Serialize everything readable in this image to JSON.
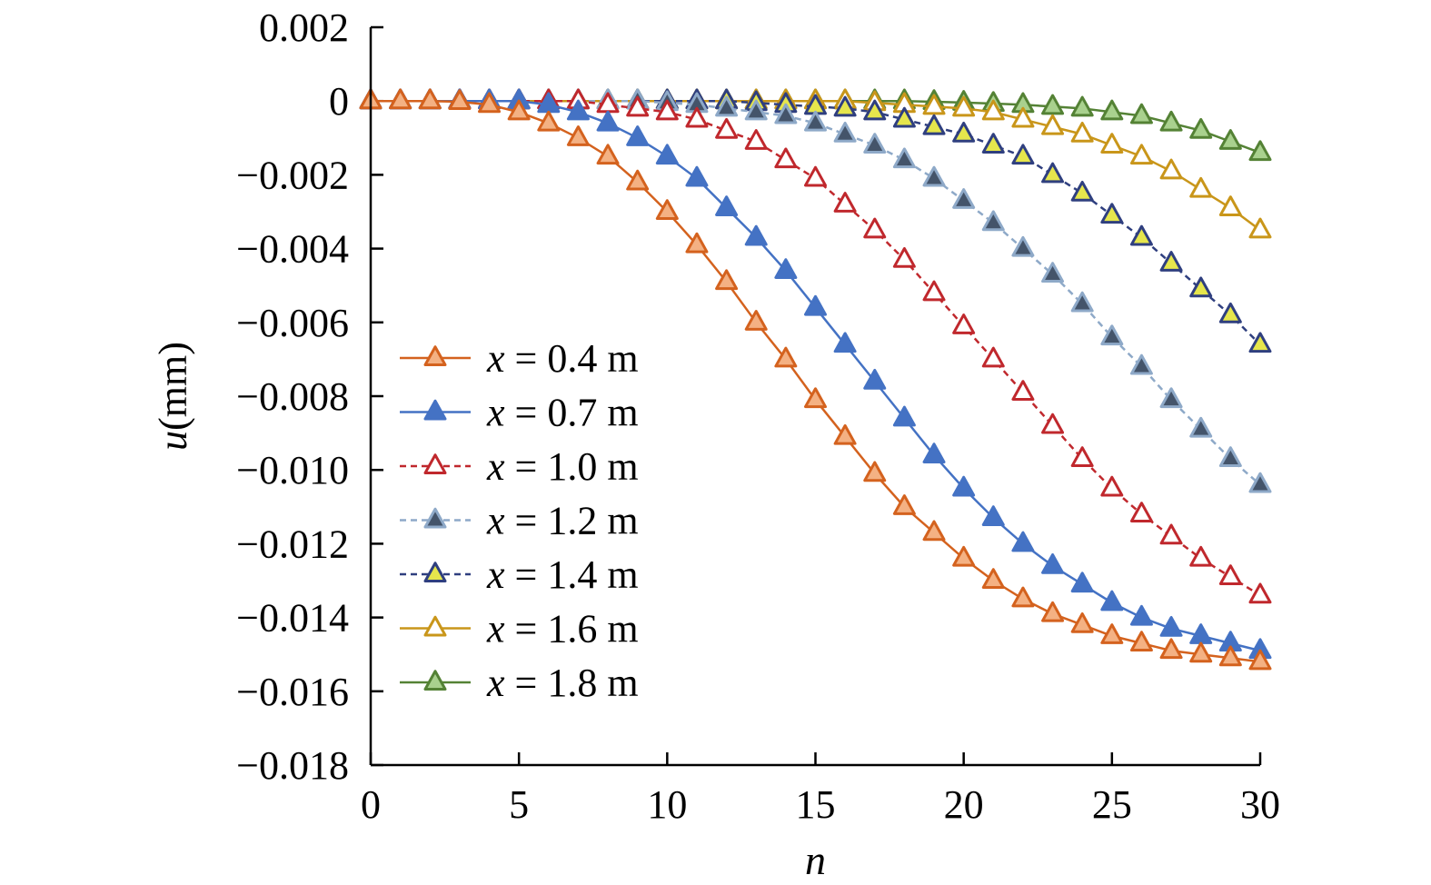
{
  "chart_data": {
    "type": "line",
    "xlabel": "n",
    "ylabel_var": "u",
    "ylabel_unit": "(mm)",
    "xlim": [
      0,
      30
    ],
    "ylim": [
      -0.018,
      0.002
    ],
    "xticks": [
      "0",
      "5",
      "10",
      "15",
      "20",
      "25",
      "30"
    ],
    "yticks": [
      "0.002",
      "0",
      "−0.002",
      "−0.004",
      "−0.006",
      "−0.008",
      "−0.010",
      "−0.012",
      "−0.014",
      "−0.016",
      "−0.018"
    ],
    "grid": false,
    "legend_position": "left-center",
    "x": [
      0,
      1,
      2,
      3,
      4,
      5,
      6,
      7,
      8,
      9,
      10,
      11,
      12,
      13,
      14,
      15,
      16,
      17,
      18,
      19,
      20,
      21,
      22,
      23,
      24,
      25,
      26,
      27,
      28,
      29,
      30
    ],
    "series": [
      {
        "name": "x = 0.4 m",
        "var": "x",
        "rest": " = 0.4 m",
        "color": "#D4621E",
        "fill": "#F4B183",
        "dashed": false,
        "values": [
          0,
          0,
          0,
          -2e-05,
          -0.0001,
          -0.0003,
          -0.0006,
          -0.001,
          -0.0015,
          -0.0022,
          -0.003,
          -0.0039,
          -0.0049,
          -0.006,
          -0.007,
          -0.0081,
          -0.0091,
          -0.0101,
          -0.011,
          -0.0117,
          -0.0124,
          -0.013,
          -0.0135,
          -0.0139,
          -0.0142,
          -0.0145,
          -0.0147,
          -0.0149,
          -0.015,
          -0.0151,
          -0.0152
        ]
      },
      {
        "name": "x = 0.7 m",
        "var": "x",
        "rest": " = 0.7 m",
        "color": "#4472C4",
        "fill": "#4472C4",
        "dashed": false,
        "values": [
          0,
          0,
          0,
          0,
          0,
          0,
          -0.0001,
          -0.0003,
          -0.0006,
          -0.001,
          -0.0015,
          -0.0021,
          -0.0029,
          -0.0037,
          -0.0046,
          -0.0056,
          -0.0066,
          -0.0076,
          -0.0086,
          -0.0096,
          -0.0105,
          -0.0113,
          -0.012,
          -0.0126,
          -0.0131,
          -0.0136,
          -0.014,
          -0.0143,
          -0.0145,
          -0.0147,
          -0.0149
        ]
      },
      {
        "name": "x = 1.0 m",
        "var": "x",
        "rest": " = 1.0 m",
        "color": "#C0282D",
        "fill": "#FFFFFF",
        "dashed": true,
        "values": [
          0,
          0,
          0,
          0,
          0,
          0,
          0,
          0,
          -0.0001,
          -0.0002,
          -0.0003,
          -0.0005,
          -0.0008,
          -0.0011,
          -0.0016,
          -0.0021,
          -0.0028,
          -0.0035,
          -0.0043,
          -0.0052,
          -0.0061,
          -0.007,
          -0.0079,
          -0.0088,
          -0.0097,
          -0.0105,
          -0.0112,
          -0.0118,
          -0.0124,
          -0.0129,
          -0.0134
        ]
      },
      {
        "name": "x = 1.2 m",
        "var": "x",
        "rest": " = 1.2 m",
        "color": "#8EA9C8",
        "fill": "#44546A",
        "dashed": true,
        "values": [
          0,
          0,
          0,
          0,
          0,
          0,
          0,
          0,
          0,
          0,
          -5e-05,
          -0.0001,
          -0.0002,
          -0.0003,
          -0.0004,
          -0.0006,
          -0.0009,
          -0.0012,
          -0.0016,
          -0.0021,
          -0.0027,
          -0.0033,
          -0.004,
          -0.0047,
          -0.0055,
          -0.0064,
          -0.0072,
          -0.0081,
          -0.0089,
          -0.0097,
          -0.0104
        ]
      },
      {
        "name": "x = 1.4 m",
        "var": "x",
        "rest": " = 1.4 m",
        "color": "#2F3F7F",
        "fill": "#E6E64C",
        "dashed": true,
        "values": [
          0,
          0,
          0,
          0,
          0,
          0,
          0,
          0,
          0,
          0,
          0,
          0,
          0,
          -5e-05,
          -0.0001,
          -0.00015,
          -0.0002,
          -0.0003,
          -0.0005,
          -0.0007,
          -0.0009,
          -0.0012,
          -0.0015,
          -0.002,
          -0.0025,
          -0.0031,
          -0.0037,
          -0.0044,
          -0.0051,
          -0.0058,
          -0.0066
        ]
      },
      {
        "name": "x = 1.6 m",
        "var": "x",
        "rest": " = 1.6 m",
        "color": "#C9961A",
        "fill": "#FFFFFF",
        "dashed": false,
        "values": [
          0,
          0,
          0,
          0,
          0,
          0,
          0,
          0,
          0,
          0,
          0,
          0,
          0,
          0,
          0,
          0,
          0,
          -5e-05,
          -0.0001,
          -0.00015,
          -0.0002,
          -0.0003,
          -0.0005,
          -0.0007,
          -0.0009,
          -0.0012,
          -0.0015,
          -0.0019,
          -0.0024,
          -0.0029,
          -0.0035
        ]
      },
      {
        "name": "x = 1.8 m",
        "var": "x",
        "rest": " = 1.8 m",
        "color": "#548235",
        "fill": "#A9D18E",
        "dashed": false,
        "values": [
          0,
          0,
          0,
          0,
          0,
          0,
          0,
          0,
          0,
          0,
          0,
          0,
          0,
          0,
          0,
          0,
          0,
          0,
          0,
          -2e-05,
          -4e-05,
          -7e-05,
          -0.0001,
          -0.00015,
          -0.0002,
          -0.0003,
          -0.0004,
          -0.0006,
          -0.0008,
          -0.0011,
          -0.0014
        ]
      }
    ]
  }
}
